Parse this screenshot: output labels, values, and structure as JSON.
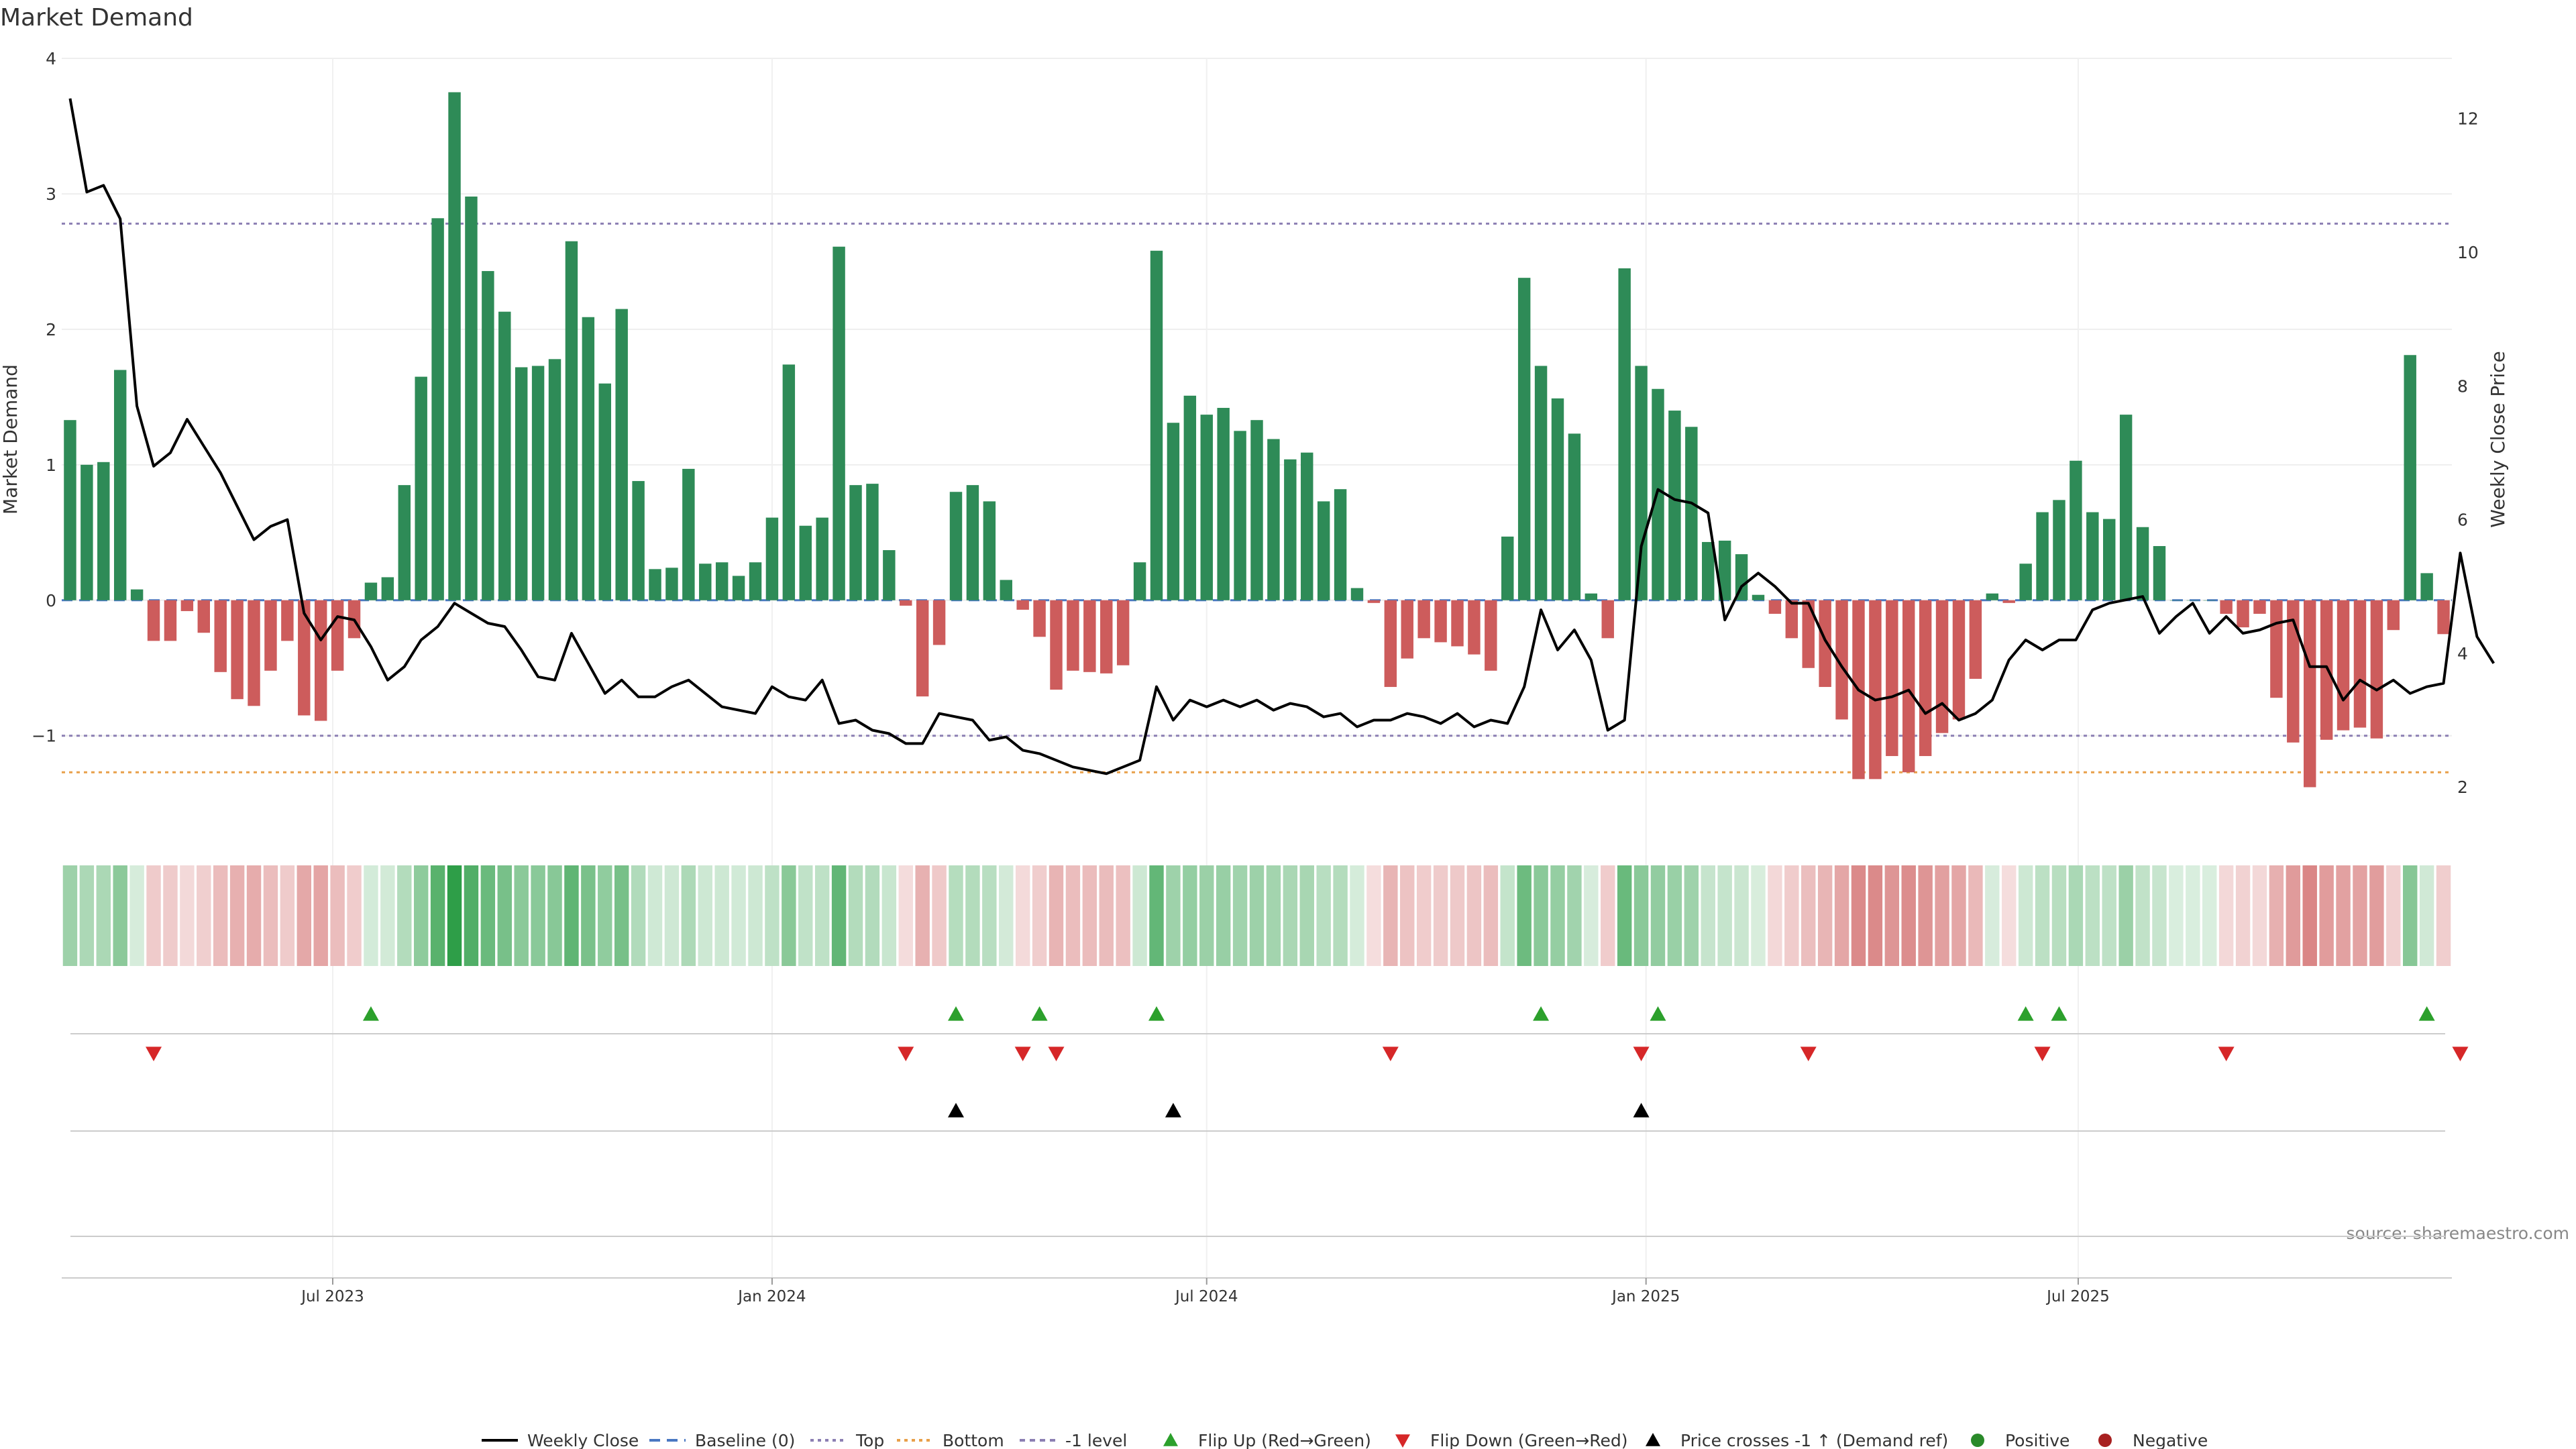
{
  "chart_data": {
    "type": "bar",
    "title": "Market Demand",
    "ylabel": "Market Demand",
    "y2label": "Weekly Close Price",
    "source": "source: sharemaestro.com",
    "ylim": [
      -1.65,
      4
    ],
    "y2lim": [
      1.45,
      12.9
    ],
    "yticks": [
      -1,
      0,
      1,
      2,
      3,
      4
    ],
    "ytick_labels": [
      "−1",
      "0",
      "1",
      "2",
      "3",
      "4"
    ],
    "y2ticks": [
      2,
      4,
      6,
      8,
      10,
      12
    ],
    "ytick2_labels": [
      "2",
      "4",
      "6",
      "8",
      "10",
      "12"
    ],
    "x_start": "2023-03-13",
    "x_step_days": 7,
    "x_ticks": [
      {
        "date": "2023-07-01",
        "label": "Jul 2023"
      },
      {
        "date": "2024-01-01",
        "label": "Jan 2024"
      },
      {
        "date": "2024-07-01",
        "label": "Jul 2024"
      },
      {
        "date": "2025-01-01",
        "label": "Jan 2025"
      },
      {
        "date": "2025-07-01",
        "label": "Jul 2025"
      }
    ],
    "levels": [
      {
        "name": "Top",
        "value": 2.78,
        "color": "#8c7fb3"
      },
      {
        "name": "-1 level",
        "value": -1,
        "color": "#8c7fb3"
      },
      {
        "name": "Bottom",
        "value": -1.27,
        "color": "#e8a04a"
      }
    ],
    "colors": {
      "positive": "#2e8b57",
      "negative": "#cd5c5c",
      "price": "#000000",
      "baseline": "#4a78c2",
      "flip_up": "#2ca02c",
      "flip_down": "#d62728",
      "cross": "#000000",
      "pos_dot": "#2a8a2a",
      "neg_dot": "#a82020"
    },
    "series": [
      {
        "name": "Market Demand",
        "values": [
          1.33,
          1.0,
          1.02,
          1.7,
          0.08,
          -0.3,
          -0.3,
          -0.08,
          -0.24,
          -0.53,
          -0.73,
          -0.78,
          -0.52,
          -0.3,
          -0.85,
          -0.89,
          -0.52,
          -0.28,
          0.13,
          0.17,
          0.85,
          1.65,
          2.82,
          3.75,
          2.98,
          2.43,
          2.13,
          1.72,
          1.73,
          1.78,
          2.65,
          2.09,
          1.6,
          2.15,
          0.88,
          0.23,
          0.24,
          0.97,
          0.27,
          0.28,
          0.18,
          0.28,
          0.61,
          1.74,
          0.55,
          0.61,
          2.61,
          0.85,
          0.86,
          0.37,
          -0.04,
          -0.71,
          -0.33,
          0.8,
          0.85,
          0.73,
          0.15,
          -0.07,
          -0.27,
          -0.66,
          -0.52,
          -0.53,
          -0.54,
          -0.48,
          0.28,
          2.58,
          1.31,
          1.51,
          1.37,
          1.42,
          1.25,
          1.33,
          1.19,
          1.04,
          1.09,
          0.73,
          0.82,
          0.09,
          -0.02,
          -0.64,
          -0.43,
          -0.28,
          -0.31,
          -0.34,
          -0.4,
          -0.52,
          0.47,
          2.38,
          1.73,
          1.49,
          1.23,
          0.05,
          -0.28,
          2.45,
          1.73,
          1.56,
          1.4,
          1.28,
          0.43,
          0.44,
          0.34,
          0.04,
          -0.1,
          -0.28,
          -0.5,
          -0.64,
          -0.88,
          -1.32,
          -1.32,
          -1.15,
          -1.27,
          -1.15,
          -0.98,
          -0.88,
          -0.58,
          0.05,
          -0.02,
          0.27,
          0.65,
          0.74,
          1.03,
          0.65,
          0.6,
          1.37,
          0.54,
          0.4,
          0.0,
          0.0,
          0.0,
          -0.1,
          -0.2,
          -0.1,
          -0.72,
          -1.05,
          -1.38,
          -1.03,
          -0.96,
          -0.94,
          -1.02,
          -0.22,
          1.81,
          0.2,
          -0.25
        ]
      },
      {
        "name": "Weekly Close",
        "axis": "right",
        "values": [
          12.3,
          10.9,
          11.0,
          10.5,
          7.7,
          6.8,
          7.0,
          7.5,
          7.1,
          6.7,
          6.2,
          5.7,
          5.9,
          6.0,
          4.6,
          4.2,
          4.55,
          4.5,
          4.1,
          3.6,
          3.8,
          4.2,
          4.4,
          4.75,
          4.6,
          4.45,
          4.4,
          4.05,
          3.65,
          3.6,
          4.3,
          3.85,
          3.4,
          3.6,
          3.35,
          3.35,
          3.5,
          3.6,
          3.4,
          3.2,
          3.15,
          3.1,
          3.5,
          3.35,
          3.3,
          3.6,
          2.95,
          3.0,
          2.85,
          2.8,
          2.65,
          2.65,
          3.1,
          3.05,
          3.0,
          2.7,
          2.75,
          2.55,
          2.5,
          2.4,
          2.3,
          2.25,
          2.2,
          2.3,
          2.4,
          3.5,
          3.0,
          3.3,
          3.2,
          3.3,
          3.2,
          3.3,
          3.15,
          3.25,
          3.2,
          3.05,
          3.1,
          2.9,
          3.0,
          3.0,
          3.1,
          3.05,
          2.95,
          3.1,
          2.9,
          3.0,
          2.95,
          3.5,
          4.65,
          4.05,
          4.35,
          3.9,
          2.85,
          3.0,
          5.6,
          6.45,
          6.3,
          6.25,
          6.1,
          4.5,
          5.0,
          5.2,
          5.0,
          4.75,
          4.75,
          4.2,
          3.8,
          3.45,
          3.3,
          3.35,
          3.45,
          3.1,
          3.25,
          3.0,
          3.1,
          3.3,
          3.9,
          4.2,
          4.05,
          4.2,
          4.2,
          4.65,
          4.75,
          4.8,
          4.85,
          4.3,
          4.55,
          4.75,
          4.3,
          4.55,
          4.3,
          4.35,
          4.45,
          4.5,
          3.8,
          3.8,
          3.3,
          3.6,
          3.45,
          3.6,
          3.4,
          3.5,
          3.55,
          5.5,
          4.25,
          3.85
        ]
      }
    ],
    "flip_up_idx": [
      18,
      53,
      58,
      65,
      88,
      95,
      117,
      119,
      141
    ],
    "flip_down_idx": [
      5,
      50,
      57,
      59,
      79,
      94,
      104,
      118,
      129,
      143
    ],
    "cross_idx": [
      53,
      66,
      94
    ],
    "legend": [
      {
        "type": "line",
        "label": "Weekly Close"
      },
      {
        "type": "dash-blue",
        "label": "Baseline (0)"
      },
      {
        "type": "dot-purple",
        "label": "Top"
      },
      {
        "type": "dot-orange",
        "label": "Bottom"
      },
      {
        "type": "dash-gray",
        "label": "-1 level"
      },
      {
        "type": "tri-up-green",
        "label": "Flip Up (Red→Green)"
      },
      {
        "type": "tri-down-red",
        "label": "Flip Down (Green→Red)"
      },
      {
        "type": "tri-up-black",
        "label": "Price crosses -1 ↑ (Demand ref)"
      },
      {
        "type": "dot-green",
        "label": "Positive"
      },
      {
        "type": "dot-red",
        "label": "Negative"
      }
    ]
  }
}
